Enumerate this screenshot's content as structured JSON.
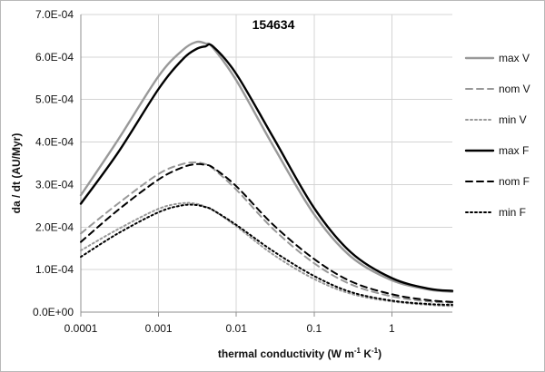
{
  "chart_data": {
    "type": "line",
    "title": "154634",
    "xlabel": "thermal conductivity (W m",
    "xlabel_exp1": "-1",
    "xlabel_mid": "  K",
    "xlabel_exp2": "-1",
    "xlabel_close": ")",
    "ylabel": "da / dt (AU/Myr)",
    "x_scale": "log",
    "xlim": [
      0.0001,
      6
    ],
    "ylim": [
      0,
      0.0007
    ],
    "x_ticks": [
      0.0001,
      0.001,
      0.01,
      0.1,
      1
    ],
    "x_tick_labels": [
      "0.0001",
      "0.001",
      "0.01",
      "0.1",
      "1"
    ],
    "y_ticks": [
      0,
      0.0001,
      0.0002,
      0.0003,
      0.0004,
      0.0005,
      0.0006,
      0.0007
    ],
    "y_tick_labels": [
      "0.0E+00",
      "1.0E-04",
      "2.0E-04",
      "3.0E-04",
      "4.0E-04",
      "5.0E-04",
      "6.0E-04",
      "7.0E-04"
    ],
    "grid": true,
    "legend_position": "right",
    "x": [
      0.0001,
      0.0003,
      0.001,
      0.002,
      0.003,
      0.004,
      0.005,
      0.01,
      0.03,
      0.1,
      0.3,
      1,
      3,
      6
    ],
    "series": [
      {
        "name": "max V",
        "color": "#999999",
        "dash": "solid",
        "values": [
          0.000275,
          0.000405,
          0.000555,
          0.000615,
          0.000635,
          0.000632,
          0.000622,
          0.000545,
          0.00039,
          0.00023,
          0.00013,
          7.5e-05,
          5.3e-05,
          4.8e-05
        ]
      },
      {
        "name": "nom V",
        "color": "#999999",
        "dash": "dashed",
        "values": [
          0.000185,
          0.000255,
          0.000325,
          0.000348,
          0.000352,
          0.000348,
          0.000338,
          0.000288,
          0.000195,
          0.000115,
          6.5e-05,
          3.7e-05,
          2.5e-05,
          2.2e-05
        ]
      },
      {
        "name": "min V",
        "color": "#999999",
        "dash": "dotted",
        "values": [
          0.000145,
          0.000195,
          0.000243,
          0.000256,
          0.000255,
          0.000248,
          0.00024,
          0.000202,
          0.000135,
          7.8e-05,
          4.3e-05,
          2.5e-05,
          1.7e-05,
          1.4e-05
        ]
      },
      {
        "name": "max F",
        "color": "#000000",
        "dash": "solid",
        "values": [
          0.000255,
          0.000375,
          0.000525,
          0.000593,
          0.000618,
          0.000625,
          0.000625,
          0.00056,
          0.00041,
          0.000245,
          0.00014,
          8e-05,
          5.5e-05,
          5e-05
        ]
      },
      {
        "name": "nom F",
        "color": "#000000",
        "dash": "dashed",
        "values": [
          0.000165,
          0.00024,
          0.000312,
          0.00034,
          0.000348,
          0.000346,
          0.00034,
          0.000296,
          0.000205,
          0.000125,
          7.2e-05,
          4.2e-05,
          2.8e-05,
          2.4e-05
        ]
      },
      {
        "name": "min F",
        "color": "#000000",
        "dash": "dotted",
        "values": [
          0.00013,
          0.000185,
          0.000235,
          0.000251,
          0.000252,
          0.000247,
          0.00024,
          0.000205,
          0.000143,
          8.5e-05,
          4.7e-05,
          2.7e-05,
          1.9e-05,
          1.7e-05
        ]
      }
    ]
  }
}
